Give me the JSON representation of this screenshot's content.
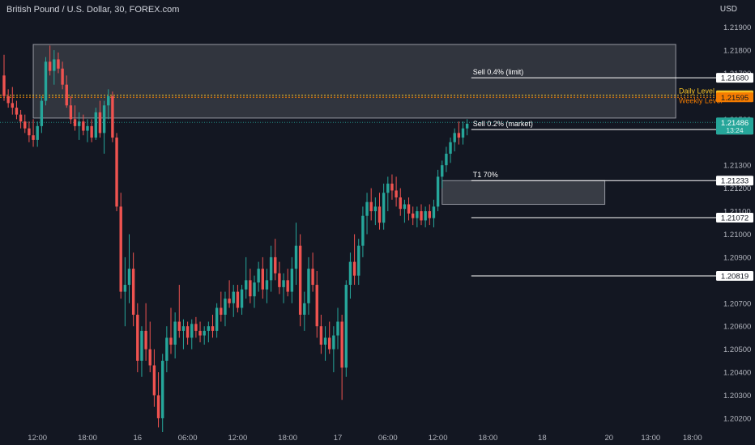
{
  "title": "British Pound / U.S. Dollar, 30, FOREX.com",
  "currency": "USD",
  "chart_data": {
    "type": "candlestick",
    "ylim": [
      1.2014,
      1.2199
    ],
    "y_ticks": [
      1.219,
      1.218,
      1.217,
      1.215,
      1.213,
      1.212,
      1.211,
      1.21,
      1.209,
      1.207,
      1.206,
      1.205,
      1.204,
      1.203,
      1.202
    ],
    "y_tick_labels": [
      "1.21900",
      "1.21800",
      "1.21700",
      "1.21500",
      "1.21300",
      "1.21200",
      "1.21100",
      "1.21000",
      "1.20900",
      "1.20700",
      "1.20600",
      "1.20500",
      "1.20400",
      "1.20300",
      "1.20200"
    ],
    "x_ticks": [
      {
        "bar": 8,
        "label": "12:00"
      },
      {
        "bar": 20,
        "label": "18:00"
      },
      {
        "bar": 32,
        "label": "16"
      },
      {
        "bar": 44,
        "label": "06:00"
      },
      {
        "bar": 56,
        "label": "12:00"
      },
      {
        "bar": 68,
        "label": "18:00"
      },
      {
        "bar": 80,
        "label": "17"
      },
      {
        "bar": 92,
        "label": "06:00"
      },
      {
        "bar": 104,
        "label": "12:00"
      },
      {
        "bar": 116,
        "label": "18:00"
      },
      {
        "bar": 129,
        "label": "18"
      },
      {
        "bar": 145,
        "label": "20"
      },
      {
        "bar": 155,
        "label": "13:00"
      },
      {
        "bar": 165,
        "label": "18:00"
      }
    ],
    "candles": [
      {
        "o": 1.2169,
        "h": 1.2178,
        "l": 1.2158,
        "c": 1.216
      },
      {
        "o": 1.216,
        "h": 1.2163,
        "l": 1.2155,
        "c": 1.2157
      },
      {
        "o": 1.2157,
        "h": 1.2164,
        "l": 1.2152,
        "c": 1.2155
      },
      {
        "o": 1.2155,
        "h": 1.2158,
        "l": 1.215,
        "c": 1.2152
      },
      {
        "o": 1.2152,
        "h": 1.2154,
        "l": 1.2146,
        "c": 1.2149
      },
      {
        "o": 1.2149,
        "h": 1.2152,
        "l": 1.2144,
        "c": 1.2146
      },
      {
        "o": 1.2146,
        "h": 1.2149,
        "l": 1.214,
        "c": 1.2143
      },
      {
        "o": 1.2143,
        "h": 1.215,
        "l": 1.2138,
        "c": 1.2141
      },
      {
        "o": 1.2141,
        "h": 1.2149,
        "l": 1.2138,
        "c": 1.2147
      },
      {
        "o": 1.2147,
        "h": 1.216,
        "l": 1.2144,
        "c": 1.2158
      },
      {
        "o": 1.2158,
        "h": 1.2177,
        "l": 1.2156,
        "c": 1.2175
      },
      {
        "o": 1.2175,
        "h": 1.2182,
        "l": 1.2169,
        "c": 1.2171
      },
      {
        "o": 1.2171,
        "h": 1.218,
        "l": 1.2165,
        "c": 1.2176
      },
      {
        "o": 1.2176,
        "h": 1.2179,
        "l": 1.217,
        "c": 1.2172
      },
      {
        "o": 1.2172,
        "h": 1.2175,
        "l": 1.2163,
        "c": 1.2165
      },
      {
        "o": 1.2165,
        "h": 1.2169,
        "l": 1.2155,
        "c": 1.2156
      },
      {
        "o": 1.2156,
        "h": 1.216,
        "l": 1.2148,
        "c": 1.215
      },
      {
        "o": 1.215,
        "h": 1.2156,
        "l": 1.2145,
        "c": 1.2147
      },
      {
        "o": 1.2147,
        "h": 1.2153,
        "l": 1.2141,
        "c": 1.2149
      },
      {
        "o": 1.2149,
        "h": 1.2152,
        "l": 1.2143,
        "c": 1.2145
      },
      {
        "o": 1.2145,
        "h": 1.215,
        "l": 1.214,
        "c": 1.2147
      },
      {
        "o": 1.2147,
        "h": 1.215,
        "l": 1.214,
        "c": 1.2142
      },
      {
        "o": 1.2142,
        "h": 1.2155,
        "l": 1.2141,
        "c": 1.2153
      },
      {
        "o": 1.2153,
        "h": 1.2158,
        "l": 1.2142,
        "c": 1.2144
      },
      {
        "o": 1.2144,
        "h": 1.2158,
        "l": 1.2135,
        "c": 1.2156
      },
      {
        "o": 1.2156,
        "h": 1.2163,
        "l": 1.215,
        "c": 1.216
      },
      {
        "o": 1.216,
        "h": 1.2162,
        "l": 1.214,
        "c": 1.2142
      },
      {
        "o": 1.2142,
        "h": 1.2144,
        "l": 1.211,
        "c": 1.2112
      },
      {
        "o": 1.2112,
        "h": 1.2118,
        "l": 1.2072,
        "c": 1.2075
      },
      {
        "o": 1.2075,
        "h": 1.209,
        "l": 1.206,
        "c": 1.2078
      },
      {
        "o": 1.2078,
        "h": 1.21,
        "l": 1.207,
        "c": 1.2085
      },
      {
        "o": 1.2085,
        "h": 1.2092,
        "l": 1.206,
        "c": 1.2065
      },
      {
        "o": 1.2065,
        "h": 1.207,
        "l": 1.204,
        "c": 1.2045
      },
      {
        "o": 1.2045,
        "h": 1.206,
        "l": 1.2038,
        "c": 1.2058
      },
      {
        "o": 1.2058,
        "h": 1.207,
        "l": 1.2045,
        "c": 1.205
      },
      {
        "o": 1.205,
        "h": 1.2062,
        "l": 1.204,
        "c": 1.2043
      },
      {
        "o": 1.2043,
        "h": 1.205,
        "l": 1.2025,
        "c": 1.203
      },
      {
        "o": 1.203,
        "h": 1.204,
        "l": 1.2016,
        "c": 1.202
      },
      {
        "o": 1.202,
        "h": 1.2048,
        "l": 1.2014,
        "c": 1.2045
      },
      {
        "o": 1.2045,
        "h": 1.206,
        "l": 1.204,
        "c": 1.2055
      },
      {
        "o": 1.2055,
        "h": 1.2068,
        "l": 1.2048,
        "c": 1.2052
      },
      {
        "o": 1.2052,
        "h": 1.2066,
        "l": 1.2046,
        "c": 1.2062
      },
      {
        "o": 1.2062,
        "h": 1.2078,
        "l": 1.2055,
        "c": 1.2058
      },
      {
        "o": 1.2058,
        "h": 1.2063,
        "l": 1.205,
        "c": 1.206
      },
      {
        "o": 1.206,
        "h": 1.2062,
        "l": 1.2052,
        "c": 1.2055
      },
      {
        "o": 1.2055,
        "h": 1.2063,
        "l": 1.205,
        "c": 1.2061
      },
      {
        "o": 1.2061,
        "h": 1.2064,
        "l": 1.2055,
        "c": 1.2058
      },
      {
        "o": 1.2058,
        "h": 1.2062,
        "l": 1.2053,
        "c": 1.2056
      },
      {
        "o": 1.2056,
        "h": 1.206,
        "l": 1.2052,
        "c": 1.2058
      },
      {
        "o": 1.2058,
        "h": 1.2062,
        "l": 1.2053,
        "c": 1.206
      },
      {
        "o": 1.206,
        "h": 1.2065,
        "l": 1.2055,
        "c": 1.2058
      },
      {
        "o": 1.2058,
        "h": 1.207,
        "l": 1.2055,
        "c": 1.2068
      },
      {
        "o": 1.2068,
        "h": 1.2075,
        "l": 1.2062,
        "c": 1.2065
      },
      {
        "o": 1.2065,
        "h": 1.2075,
        "l": 1.206,
        "c": 1.2072
      },
      {
        "o": 1.2072,
        "h": 1.208,
        "l": 1.2068,
        "c": 1.207
      },
      {
        "o": 1.207,
        "h": 1.2078,
        "l": 1.2064,
        "c": 1.2075
      },
      {
        "o": 1.2075,
        "h": 1.2078,
        "l": 1.2066,
        "c": 1.2068
      },
      {
        "o": 1.2068,
        "h": 1.2078,
        "l": 1.2065,
        "c": 1.2076
      },
      {
        "o": 1.2076,
        "h": 1.209,
        "l": 1.2072,
        "c": 1.208
      },
      {
        "o": 1.208,
        "h": 1.2085,
        "l": 1.207,
        "c": 1.2073
      },
      {
        "o": 1.2073,
        "h": 1.2082,
        "l": 1.2068,
        "c": 1.2079
      },
      {
        "o": 1.2079,
        "h": 1.2088,
        "l": 1.2075,
        "c": 1.2085
      },
      {
        "o": 1.2085,
        "h": 1.209,
        "l": 1.2072,
        "c": 1.2076
      },
      {
        "o": 1.2076,
        "h": 1.2085,
        "l": 1.207,
        "c": 1.208
      },
      {
        "o": 1.208,
        "h": 1.2095,
        "l": 1.2075,
        "c": 1.209
      },
      {
        "o": 1.209,
        "h": 1.2098,
        "l": 1.208,
        "c": 1.2083
      },
      {
        "o": 1.2083,
        "h": 1.2088,
        "l": 1.2074,
        "c": 1.2077
      },
      {
        "o": 1.2077,
        "h": 1.2083,
        "l": 1.207,
        "c": 1.208
      },
      {
        "o": 1.208,
        "h": 1.2085,
        "l": 1.2073,
        "c": 1.2075
      },
      {
        "o": 1.2075,
        "h": 1.209,
        "l": 1.207,
        "c": 1.2085
      },
      {
        "o": 1.2085,
        "h": 1.2105,
        "l": 1.2078,
        "c": 1.2095
      },
      {
        "o": 1.2095,
        "h": 1.21,
        "l": 1.206,
        "c": 1.2065
      },
      {
        "o": 1.2065,
        "h": 1.2075,
        "l": 1.2058,
        "c": 1.207
      },
      {
        "o": 1.207,
        "h": 1.209,
        "l": 1.2065,
        "c": 1.2085
      },
      {
        "o": 1.2085,
        "h": 1.2092,
        "l": 1.2075,
        "c": 1.2078
      },
      {
        "o": 1.2078,
        "h": 1.2084,
        "l": 1.2055,
        "c": 1.206
      },
      {
        "o": 1.206,
        "h": 1.2065,
        "l": 1.2048,
        "c": 1.2052
      },
      {
        "o": 1.2052,
        "h": 1.206,
        "l": 1.2045,
        "c": 1.2055
      },
      {
        "o": 1.2055,
        "h": 1.2062,
        "l": 1.2048,
        "c": 1.205
      },
      {
        "o": 1.205,
        "h": 1.206,
        "l": 1.204,
        "c": 1.2056
      },
      {
        "o": 1.2056,
        "h": 1.2068,
        "l": 1.205,
        "c": 1.2062
      },
      {
        "o": 1.2062,
        "h": 1.2065,
        "l": 1.2028,
        "c": 1.2042
      },
      {
        "o": 1.2042,
        "h": 1.208,
        "l": 1.2038,
        "c": 1.2078
      },
      {
        "o": 1.2078,
        "h": 1.2092,
        "l": 1.2072,
        "c": 1.2088
      },
      {
        "o": 1.2088,
        "h": 1.21,
        "l": 1.2078,
        "c": 1.2082
      },
      {
        "o": 1.2082,
        "h": 1.2098,
        "l": 1.2078,
        "c": 1.2095
      },
      {
        "o": 1.2095,
        "h": 1.2112,
        "l": 1.209,
        "c": 1.2108
      },
      {
        "o": 1.2108,
        "h": 1.2118,
        "l": 1.21,
        "c": 1.2114
      },
      {
        "o": 1.2114,
        "h": 1.212,
        "l": 1.2106,
        "c": 1.211
      },
      {
        "o": 1.211,
        "h": 1.2116,
        "l": 1.2104,
        "c": 1.2112
      },
      {
        "o": 1.2112,
        "h": 1.2118,
        "l": 1.2102,
        "c": 1.2105
      },
      {
        "o": 1.2105,
        "h": 1.2122,
        "l": 1.2102,
        "c": 1.2118
      },
      {
        "o": 1.2118,
        "h": 1.2125,
        "l": 1.211,
        "c": 1.2122
      },
      {
        "o": 1.2122,
        "h": 1.2126,
        "l": 1.2115,
        "c": 1.2119
      },
      {
        "o": 1.2119,
        "h": 1.2125,
        "l": 1.2112,
        "c": 1.2116
      },
      {
        "o": 1.2116,
        "h": 1.212,
        "l": 1.2108,
        "c": 1.2111
      },
      {
        "o": 1.2111,
        "h": 1.2115,
        "l": 1.2105,
        "c": 1.2113
      },
      {
        "o": 1.2113,
        "h": 1.2116,
        "l": 1.2106,
        "c": 1.2109
      },
      {
        "o": 1.2109,
        "h": 1.2112,
        "l": 1.2104,
        "c": 1.2107
      },
      {
        "o": 1.2107,
        "h": 1.2112,
        "l": 1.2103,
        "c": 1.211
      },
      {
        "o": 1.211,
        "h": 1.2113,
        "l": 1.2104,
        "c": 1.2106
      },
      {
        "o": 1.2106,
        "h": 1.2112,
        "l": 1.2103,
        "c": 1.211
      },
      {
        "o": 1.211,
        "h": 1.2113,
        "l": 1.2104,
        "c": 1.2107
      },
      {
        "o": 1.2107,
        "h": 1.2115,
        "l": 1.2103,
        "c": 1.2112
      },
      {
        "o": 1.2112,
        "h": 1.2128,
        "l": 1.211,
        "c": 1.2125
      },
      {
        "o": 1.2125,
        "h": 1.2132,
        "l": 1.212,
        "c": 1.213
      },
      {
        "o": 1.213,
        "h": 1.2138,
        "l": 1.2127,
        "c": 1.2135
      },
      {
        "o": 1.2135,
        "h": 1.2142,
        "l": 1.2131,
        "c": 1.214
      },
      {
        "o": 1.214,
        "h": 1.2146,
        "l": 1.2136,
        "c": 1.2144
      },
      {
        "o": 1.2144,
        "h": 1.2149,
        "l": 1.2139,
        "c": 1.2142
      },
      {
        "o": 1.2142,
        "h": 1.2149,
        "l": 1.2139,
        "c": 1.2146
      },
      {
        "o": 1.2146,
        "h": 1.215,
        "l": 1.2143,
        "c": 1.2148
      }
    ],
    "zones": [
      {
        "bar_from": 7,
        "bar_to": 161,
        "price_top": 1.21825,
        "price_bottom": 1.21505
      },
      {
        "bar_from": 105,
        "bar_to": 144,
        "price_top": 1.21233,
        "price_bottom": 1.2113
      }
    ],
    "levels": [
      {
        "name": "sell-limit",
        "price": 1.2168,
        "label": "Sell 0.4% (limit)",
        "price_label": "1.21680",
        "bar_from": 112,
        "style": "solid",
        "color": "#ffffff",
        "box_bg": "#ffffff",
        "box_text": "#131722"
      },
      {
        "name": "sell-market",
        "price": 1.21455,
        "label": "Sell 0.2% (market)",
        "price_label": "1.21455",
        "bar_from": 112,
        "style": "solid",
        "color": "#ffffff",
        "box_bg": "#ffffff",
        "box_text": "#131722"
      },
      {
        "name": "t1",
        "price": 1.21233,
        "label": "T1 70%",
        "price_label": "1.21233",
        "bar_from": 112,
        "style": "solid",
        "color": "#ffffff",
        "box_bg": "#ffffff",
        "box_text": "#131722"
      },
      {
        "name": "level-21072",
        "price": 1.21072,
        "label": "",
        "price_label": "1.21072",
        "bar_from": 112,
        "style": "solid",
        "color": "#ffffff",
        "box_bg": "#ffffff",
        "box_text": "#131722"
      },
      {
        "name": "level-20819",
        "price": 1.20819,
        "label": "",
        "price_label": "1.20819",
        "bar_from": 112,
        "style": "solid",
        "color": "#ffffff",
        "box_bg": "#ffffff",
        "box_text": "#131722"
      },
      {
        "name": "daily-level",
        "price": 1.21604,
        "label": "Daily Level",
        "price_label": "1.21604",
        "bar_from": -10,
        "style": "dotted",
        "color": "#f7c325",
        "box_bg": "#f7c325",
        "box_text": "#131722"
      },
      {
        "name": "weekly-level",
        "price": 1.21595,
        "label": "Weekly Level",
        "price_label": "1.21595",
        "bar_from": -10,
        "style": "dotted",
        "color": "#f57c00",
        "box_bg": "#f57c00",
        "box_text": "#131722"
      }
    ],
    "current_price": {
      "price": 1.21486,
      "label": "1.21486",
      "countdown": "13:24",
      "color": "#26a69a"
    },
    "colors": {
      "up": "#26a69a",
      "down": "#ef5350",
      "background": "#131722",
      "axis_text": "#b2b5be",
      "zone_fill": "#ffffff"
    }
  }
}
